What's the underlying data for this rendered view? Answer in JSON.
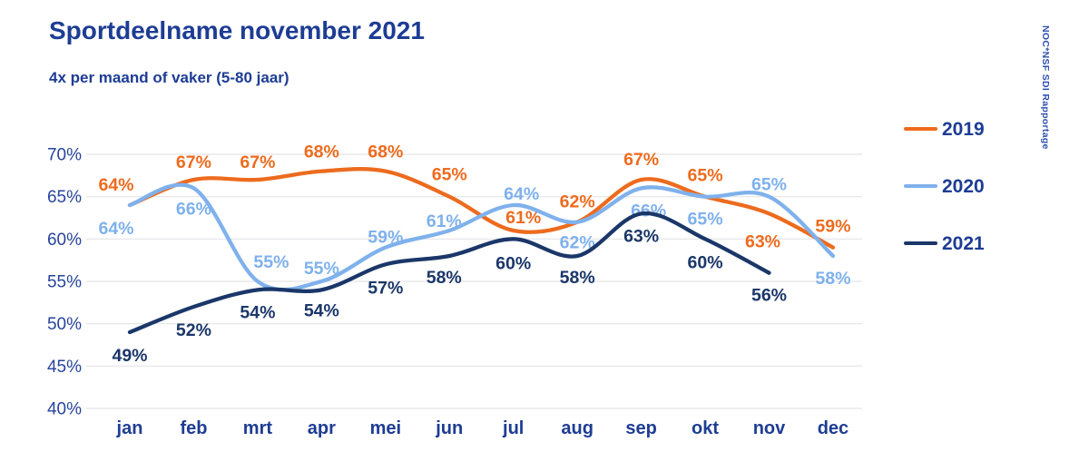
{
  "page": {
    "title": "Sportdeelname november 2021",
    "subtitle": "4x per maand of vaker (5-80 jaar)",
    "watermark": "NOC*NSF SDI Rapportage"
  },
  "colors": {
    "title_text": "#1d3c94",
    "axis_text": "#27449c",
    "month_text": "#1d3c94",
    "gridline": "#e4e4e8",
    "watermark_text": "#2d4fae",
    "series_2019": "#ED6B1E",
    "series_2020": "#7FB1EC",
    "series_2021": "#1B3769"
  },
  "chart_data": {
    "type": "line",
    "title": "Sportdeelname november 2021",
    "subtitle": "4x per maand of vaker (5-80 jaar)",
    "categories": [
      "jan",
      "feb",
      "mrt",
      "apr",
      "mei",
      "jun",
      "jul",
      "aug",
      "sep",
      "okt",
      "nov",
      "dec"
    ],
    "series": [
      {
        "name": "2019",
        "color": "#ED6B1E",
        "values": [
          64,
          67,
          67,
          68,
          68,
          65,
          61,
          62,
          67,
          65,
          63,
          59
        ],
        "label_dy": [
          -16,
          -13,
          -13,
          -15,
          -15,
          -18,
          -8,
          -16,
          -16,
          -17,
          37,
          -17
        ],
        "label_dx": [
          -15,
          0,
          0,
          0,
          0,
          0,
          11,
          0,
          0,
          0,
          -7,
          0
        ]
      },
      {
        "name": "2020",
        "color": "#7FB1EC",
        "values": [
          64,
          66,
          55,
          55,
          59,
          61,
          64,
          62,
          66,
          65,
          65,
          58
        ],
        "label_dy": [
          32,
          29,
          -15,
          -8,
          -5,
          -4,
          -6,
          29,
          31,
          31,
          -7,
          31
        ],
        "label_dx": [
          -15,
          0,
          15,
          0,
          0,
          -6,
          9,
          0,
          8,
          0,
          0,
          0
        ]
      },
      {
        "name": "2021",
        "color": "#1B3769",
        "values": [
          49,
          52,
          54,
          54,
          57,
          58,
          60,
          58,
          63,
          60,
          56,
          null
        ],
        "label_dy": [
          32,
          32,
          31,
          29,
          32,
          30,
          33,
          30,
          31,
          32,
          31,
          0
        ],
        "label_dx": [
          0,
          0,
          0,
          0,
          0,
          -6,
          0,
          0,
          0,
          0,
          0,
          0
        ]
      }
    ],
    "ylim": [
      40,
      70
    ],
    "ytick_step": 5,
    "ytick_suffix": "%",
    "grid": true,
    "legend_position": "right",
    "value_label_suffix": "%"
  }
}
